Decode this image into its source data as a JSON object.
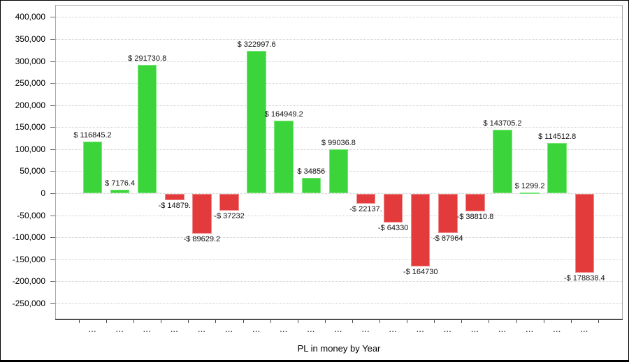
{
  "chart_data": {
    "type": "bar",
    "title": "PL in money by Year",
    "xlabel": "PL in money by Year",
    "ylabel": "",
    "ylim": [
      -250000,
      400000
    ],
    "y_tick_interval": 50000,
    "grid": "horizontal-dotted",
    "legend_position": "none",
    "colors": {
      "positive_bar": "#3bd43b",
      "negative_bar": "#e33b3b"
    },
    "y_ticks": [
      {
        "value": 400000,
        "label": "400,000"
      },
      {
        "value": 350000,
        "label": "350,000"
      },
      {
        "value": 300000,
        "label": "300,000"
      },
      {
        "value": 250000,
        "label": "250,000"
      },
      {
        "value": 200000,
        "label": "200,000"
      },
      {
        "value": 150000,
        "label": "150,000"
      },
      {
        "value": 100000,
        "label": "100,000"
      },
      {
        "value": 50000,
        "label": "50,000"
      },
      {
        "value": 0,
        "label": "0"
      },
      {
        "value": -50000,
        "label": "-50,000"
      },
      {
        "value": -100000,
        "label": "-100,000"
      },
      {
        "value": -150000,
        "label": "-150,000"
      },
      {
        "value": -200000,
        "label": "-200,000"
      },
      {
        "value": -250000,
        "label": "-250,000"
      }
    ],
    "bars": [
      {
        "value": 116845.2,
        "data_label": "$ 116845.2",
        "x_label": "..."
      },
      {
        "value": 7176.4,
        "data_label": "$ 7176.4",
        "x_label": "..."
      },
      {
        "value": 291730.8,
        "data_label": "$ 291730.8",
        "x_label": "..."
      },
      {
        "value": -14879,
        "data_label": "-$ 14879.",
        "x_label": "..."
      },
      {
        "value": -89629.2,
        "data_label": "-$ 89629.2",
        "x_label": "..."
      },
      {
        "value": -37232,
        "data_label": "-$ 37232",
        "x_label": "..."
      },
      {
        "value": 322997.6,
        "data_label": "$ 322997.6",
        "x_label": "..."
      },
      {
        "value": 164949.2,
        "data_label": "$ 164949.2",
        "x_label": "..."
      },
      {
        "value": 34856,
        "data_label": "$ 34856",
        "x_label": "..."
      },
      {
        "value": 99036.8,
        "data_label": "$ 99036.8",
        "x_label": "..."
      },
      {
        "value": -22137,
        "data_label": "-$ 22137.",
        "x_label": "..."
      },
      {
        "value": -64330,
        "data_label": "-$ 64330",
        "x_label": "..."
      },
      {
        "value": -164730,
        "data_label": "-$ 164730",
        "x_label": "..."
      },
      {
        "value": -87964,
        "data_label": "-$ 87964",
        "x_label": "..."
      },
      {
        "value": -38810.8,
        "data_label": "-$ 38810.8",
        "x_label": "..."
      },
      {
        "value": 143705.2,
        "data_label": "$ 143705.2",
        "x_label": "..."
      },
      {
        "value": 1299.2,
        "data_label": "$ 1299.2",
        "x_label": "..."
      },
      {
        "value": 114512.8,
        "data_label": "$ 114512.8",
        "x_label": "..."
      },
      {
        "value": -178838.4,
        "data_label": "-$ 178838.4",
        "x_label": "..."
      }
    ]
  }
}
